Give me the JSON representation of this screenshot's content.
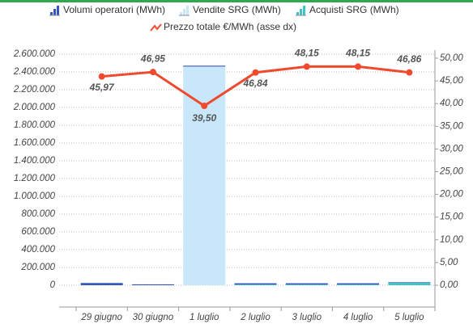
{
  "chart_data": {
    "type": "bar-line",
    "categories": [
      "29 giugno",
      "30 giugno",
      "1 luglio",
      "2 luglio",
      "3 luglio",
      "4 luglio",
      "5 luglio"
    ],
    "series": [
      {
        "name": "Vendite SRG (MWh)",
        "color": "#c9e7fb",
        "values": [
          0,
          0,
          2460000,
          0,
          0,
          0,
          0
        ]
      },
      {
        "name": "Acquisti SRG (MWh)",
        "color": "#3fc3cb",
        "values": [
          0,
          0,
          0,
          8000,
          8000,
          8000,
          28000
        ]
      },
      {
        "name": "Volumi operatori (MWh)",
        "color": "#3555c0",
        "values": [
          25000,
          10000,
          10000,
          14000,
          14000,
          14000,
          6000
        ]
      },
      {
        "name": "Prezzo totale €/MWh (asse dx)",
        "color": "#f04a2e",
        "axis": "y2",
        "type": "line",
        "values": [
          45.97,
          46.95,
          39.5,
          46.84,
          48.15,
          48.15,
          46.86
        ],
        "value_labels": [
          "45,97",
          "46,95",
          "39,50",
          "46,84",
          "48,15",
          "48,15",
          "46,86"
        ]
      }
    ],
    "ylim": [
      0,
      2600000
    ],
    "yticks": [
      0,
      {
        "value": 200000,
        "label": "200.000"
      },
      {
        "value": 400000,
        "label": "400.000"
      },
      {
        "value": 600000,
        "label": "600.000"
      },
      {
        "value": 800000,
        "label": "800.000"
      },
      {
        "value": 1000000,
        "label": "1.000.000"
      },
      {
        "value": 1200000,
        "label": "1.200.000"
      },
      {
        "value": 1400000,
        "label": "1.400.000"
      },
      {
        "value": 1600000,
        "label": "1.600.000"
      },
      {
        "value": 1800000,
        "label": "1.800.000"
      },
      {
        "value": 2000000,
        "label": "2.000.000"
      },
      {
        "value": 2200000,
        "label": "2.200.000"
      },
      {
        "value": 2400000,
        "label": "2.400.000"
      },
      {
        "value": 2600000,
        "label": "2.600.000"
      }
    ],
    "y2lim": [
      0,
      50
    ],
    "y2ticks": [
      {
        "value": 0,
        "label": "0,00"
      },
      {
        "value": 5,
        "label": "5,00"
      },
      {
        "value": 10,
        "label": "10,00"
      },
      {
        "value": 15,
        "label": "15,00"
      },
      {
        "value": 20,
        "label": "20,00"
      },
      {
        "value": 25,
        "label": "25,00"
      },
      {
        "value": 30,
        "label": "30,00"
      },
      {
        "value": 35,
        "label": "35,00"
      },
      {
        "value": 40,
        "label": "40,00"
      },
      {
        "value": 45,
        "label": "45,00"
      },
      {
        "value": 50,
        "label": "50,00"
      }
    ],
    "grid": true
  }
}
